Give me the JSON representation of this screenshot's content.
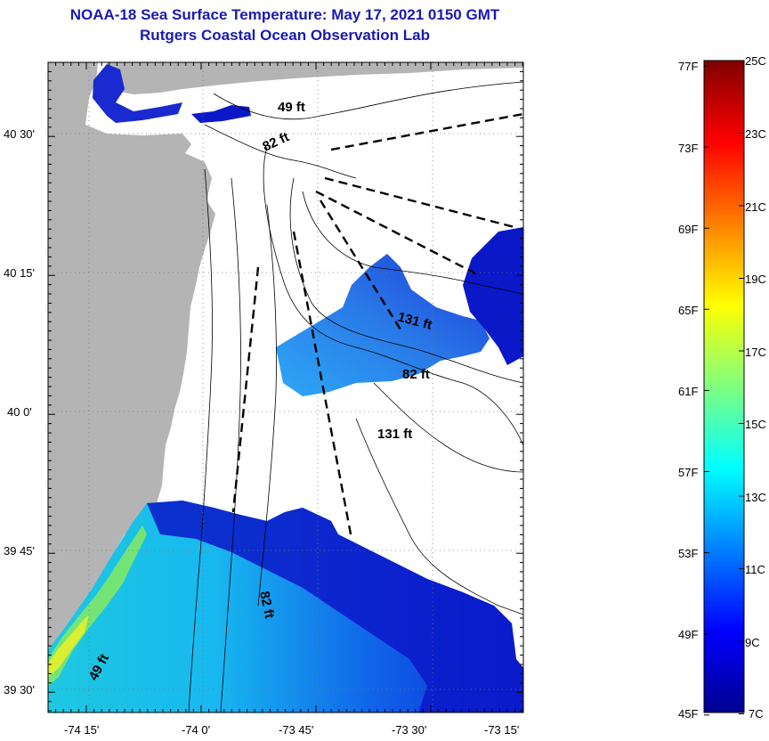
{
  "header": {
    "title": "NOAA-18 Sea Surface Temperature:  May 17, 2021 0150 GMT",
    "subtitle": "Rutgers Coastal Ocean Observation Lab"
  },
  "map": {
    "lat_labels": [
      "40 30'",
      "40 15'",
      "40 0'",
      "39 45'",
      "39 30'"
    ],
    "lon_labels": [
      "-74 15'",
      "-74 0'",
      "-73 45'",
      "-73 30'",
      "-73 15'"
    ],
    "depth_labels": [
      "49 ft",
      "82 ft",
      "131 ft",
      "131 ft",
      "82 ft",
      "49 ft",
      "82 ft"
    ],
    "colors": {
      "land": "#b4b4b4",
      "water_no_data": "#ffffff"
    }
  },
  "colorbar": {
    "f_labels": [
      "77F",
      "73F",
      "69F",
      "65F",
      "61F",
      "57F",
      "53F",
      "49F",
      "45F"
    ],
    "c_labels": [
      "25C",
      "23C",
      "21C",
      "19C",
      "17C",
      "15C",
      "13C",
      "11C",
      "9C",
      "7C"
    ]
  }
}
